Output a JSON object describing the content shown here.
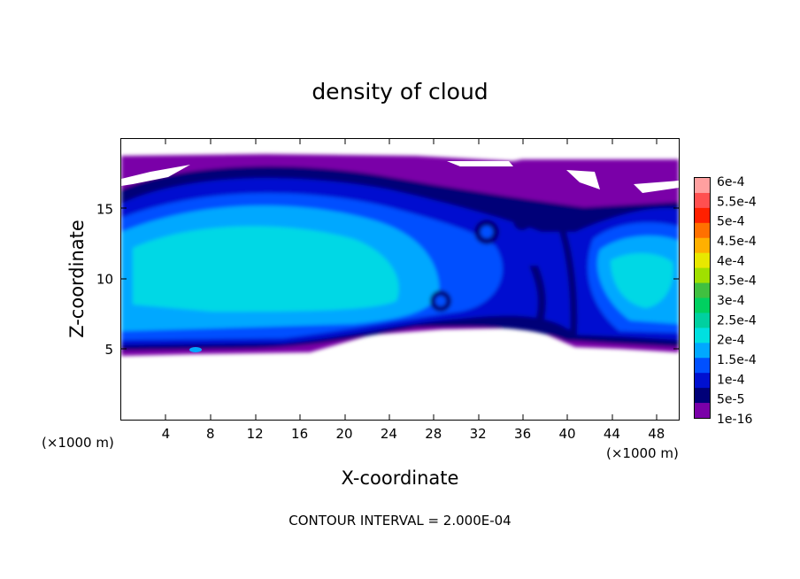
{
  "chart_data": {
    "type": "heatmap",
    "title": "density of cloud",
    "xlabel": "X-coordinate",
    "ylabel": "Z-coordinate",
    "x_unit": "(×1000 m)",
    "y_unit": "(×1000 m)",
    "xlim": [
      0,
      50
    ],
    "ylim": [
      0,
      20
    ],
    "x_ticks": [
      4,
      8,
      12,
      16,
      20,
      24,
      28,
      32,
      36,
      40,
      44,
      48
    ],
    "y_ticks": [
      5,
      10,
      15
    ],
    "colorbar": {
      "labels": [
        "6e-4",
        "5.5e-4",
        "5e-4",
        "4.5e-4",
        "4e-4",
        "3.5e-4",
        "3e-4",
        "2.5e-4",
        "2e-4",
        "1.5e-4",
        "1e-4",
        "5e-5",
        "1e-16"
      ],
      "colors": [
        "#ffa0a0",
        "#ff5050",
        "#ff2000",
        "#ff7000",
        "#ffb000",
        "#e8e800",
        "#a0e000",
        "#40c040",
        "#00d060",
        "#00d0a0",
        "#00e0e0",
        "#00a8ff",
        "#0050ff",
        "#0010d0",
        "#000078",
        "#7a00a8"
      ],
      "min_label": "1e-16",
      "max_label": "6e-4"
    },
    "annotation": "CONTOUR INTERVAL = 2.000E-04"
  }
}
